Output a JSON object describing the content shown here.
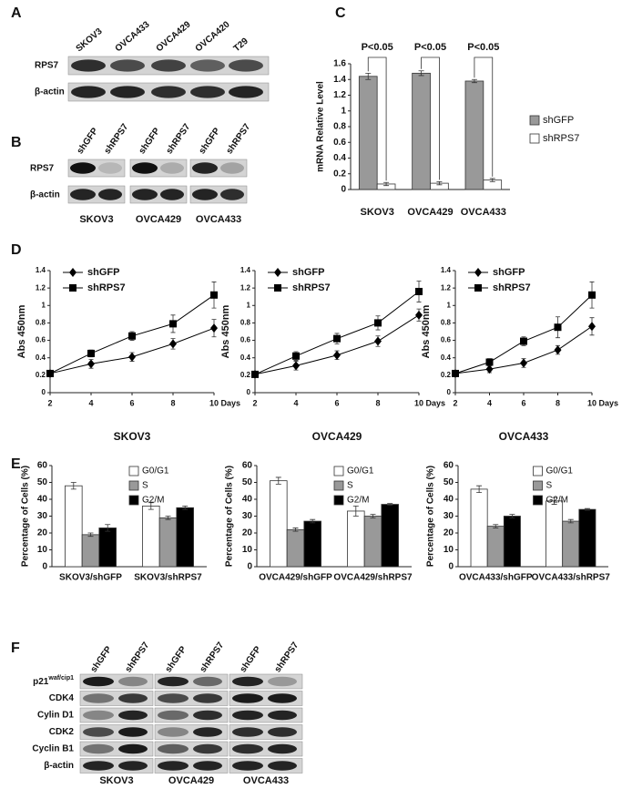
{
  "panel_labels": [
    "A",
    "B",
    "C",
    "D",
    "E",
    "F"
  ],
  "blot_a": {
    "lanes": [
      "SKOV3",
      "OVCA433",
      "OVCA429",
      "OVCA420",
      "T29"
    ],
    "rows": [
      "RPS7",
      "β-actin"
    ]
  },
  "blot_b": {
    "lanes": [
      "shGFP",
      "shRPS7"
    ],
    "rows": [
      "RPS7",
      "β-actin"
    ],
    "groups": [
      "SKOV3",
      "OVCA429",
      "OVCA433"
    ]
  },
  "blot_f": {
    "lanes": [
      "shGFP",
      "shRPS7"
    ],
    "rows": [
      {
        "main": "p21",
        "sup": "waf/cip1"
      },
      "CDK4",
      "Cylin D1",
      "CDK2",
      "Cyclin B1",
      "β-actin"
    ],
    "groups": [
      "SKOV3",
      "OVCA429",
      "OVCA433"
    ]
  },
  "chart_data": [
    {
      "type": "bar",
      "ylabel": "mRNA Relative Level",
      "categories": [
        "SKOV3",
        "OVCA429",
        "OVCA433"
      ],
      "series": [
        {
          "name": "shGFP",
          "color": "#999999",
          "values": [
            1.44,
            1.48,
            1.38
          ],
          "errors": [
            0.04,
            0.03,
            0.02
          ]
        },
        {
          "name": "shRPS7",
          "color": "#ffffff",
          "values": [
            0.07,
            0.08,
            0.12
          ],
          "errors": [
            0.02,
            0.02,
            0.02
          ]
        }
      ],
      "ylim": [
        0,
        1.6
      ],
      "yticks": [
        0,
        0.2,
        0.4,
        0.6,
        0.8,
        1,
        1.2,
        1.4,
        1.6
      ],
      "annotations": [
        "P<0.05",
        "P<0.05",
        "P<0.05"
      ],
      "legend": "right"
    },
    {
      "type": "line",
      "ylabel": "Abs 450nm",
      "xlabel": "SKOV3",
      "x": [
        2,
        4,
        6,
        8,
        10
      ],
      "xlim": [
        2,
        10
      ],
      "xticks": [
        2,
        4,
        6,
        8,
        {
          "value": 10,
          "label": "10 Days"
        }
      ],
      "ylim": [
        0,
        1.4
      ],
      "yticks": [
        0,
        0.2,
        0.4,
        0.6,
        0.8,
        1,
        1.2,
        1.4
      ],
      "series": [
        {
          "name": "shGFP",
          "color": "#000000",
          "marker": "diamond",
          "values": [
            0.22,
            0.33,
            0.41,
            0.56,
            0.74
          ],
          "errors": [
            0.03,
            0.05,
            0.05,
            0.06,
            0.1
          ]
        },
        {
          "name": "shRPS7",
          "color": "#000000",
          "marker": "square",
          "values": [
            0.22,
            0.45,
            0.65,
            0.79,
            1.12
          ],
          "errors": [
            0.03,
            0.04,
            0.05,
            0.1,
            0.15
          ]
        }
      ],
      "legend": "upper left"
    },
    {
      "type": "line",
      "ylabel": "Abs 450nm",
      "xlabel": "OVCA429",
      "x": [
        2,
        4,
        6,
        8,
        10
      ],
      "xlim": [
        2,
        10
      ],
      "xticks": [
        2,
        4,
        6,
        8,
        {
          "value": 10,
          "label": "10 Days"
        }
      ],
      "ylim": [
        0,
        1.4
      ],
      "yticks": [
        0,
        0.2,
        0.4,
        0.6,
        0.8,
        1,
        1.2,
        1.4
      ],
      "series": [
        {
          "name": "shGFP",
          "color": "#000000",
          "marker": "diamond",
          "values": [
            0.21,
            0.31,
            0.43,
            0.59,
            0.89
          ],
          "errors": [
            0.03,
            0.05,
            0.05,
            0.06,
            0.07
          ]
        },
        {
          "name": "shRPS7",
          "color": "#000000",
          "marker": "square",
          "values": [
            0.21,
            0.42,
            0.62,
            0.8,
            1.16
          ],
          "errors": [
            0.03,
            0.05,
            0.06,
            0.08,
            0.12
          ]
        }
      ],
      "legend": "upper left"
    },
    {
      "type": "line",
      "ylabel": "Abs 450nm",
      "xlabel": "OVCA433",
      "x": [
        2,
        4,
        6,
        8,
        10
      ],
      "xlim": [
        2,
        10
      ],
      "xticks": [
        2,
        4,
        6,
        8,
        {
          "value": 10,
          "label": "10 Days"
        }
      ],
      "ylim": [
        0,
        1.4
      ],
      "yticks": [
        0,
        0.2,
        0.4,
        0.6,
        0.8,
        1,
        1.2,
        1.4
      ],
      "series": [
        {
          "name": "shGFP",
          "color": "#000000",
          "marker": "diamond",
          "values": [
            0.22,
            0.27,
            0.34,
            0.49,
            0.76
          ],
          "errors": [
            0.03,
            0.04,
            0.05,
            0.05,
            0.1
          ]
        },
        {
          "name": "shRPS7",
          "color": "#000000",
          "marker": "square",
          "values": [
            0.22,
            0.35,
            0.59,
            0.75,
            1.12
          ],
          "errors": [
            0.03,
            0.04,
            0.05,
            0.12,
            0.15
          ]
        }
      ],
      "legend": "upper left"
    },
    {
      "type": "bar",
      "ylabel": "Percentage of Cells (%)",
      "categories": [
        "SKOV3/shGFP",
        "SKOV3/shRPS7"
      ],
      "series": [
        {
          "name": "G0/G1",
          "color": "#ffffff",
          "values": [
            48,
            36
          ],
          "errors": [
            2,
            2
          ]
        },
        {
          "name": "S",
          "color": "#999999",
          "values": [
            19,
            29
          ],
          "errors": [
            1,
            1
          ]
        },
        {
          "name": "G2/M",
          "color": "#000000",
          "values": [
            23,
            35
          ],
          "errors": [
            2,
            1
          ]
        }
      ],
      "ylim": [
        0,
        60
      ],
      "yticks": [
        0,
        10,
        20,
        30,
        40,
        50,
        60
      ],
      "legend": "upper right"
    },
    {
      "type": "bar",
      "ylabel": "Percentage of Cells (%)",
      "categories": [
        "OVCA429/shGFP",
        "OVCA429/shRPS7"
      ],
      "series": [
        {
          "name": "G0/G1",
          "color": "#ffffff",
          "values": [
            51,
            33
          ],
          "errors": [
            2,
            3
          ]
        },
        {
          "name": "S",
          "color": "#999999",
          "values": [
            22,
            30
          ],
          "errors": [
            1,
            1
          ]
        },
        {
          "name": "G2/M",
          "color": "#000000",
          "values": [
            27,
            37
          ],
          "errors": [
            1,
            0.5
          ]
        }
      ],
      "ylim": [
        0,
        60
      ],
      "yticks": [
        0,
        10,
        20,
        30,
        40,
        50,
        60
      ],
      "legend": "upper right"
    },
    {
      "type": "bar",
      "ylabel": "Percentage of Cells (%)",
      "categories": [
        "OVCA433/shGFP",
        "OVCA433/shRPS7"
      ],
      "series": [
        {
          "name": "G0/G1",
          "color": "#ffffff",
          "values": [
            46,
            39
          ],
          "errors": [
            2,
            2
          ]
        },
        {
          "name": "S",
          "color": "#999999",
          "values": [
            24,
            27
          ],
          "errors": [
            1,
            1
          ]
        },
        {
          "name": "G2/M",
          "color": "#000000",
          "values": [
            30,
            34
          ],
          "errors": [
            1,
            0.5
          ]
        }
      ],
      "ylim": [
        0,
        60
      ],
      "yticks": [
        0,
        10,
        20,
        30,
        40,
        50,
        60
      ],
      "legend": "upper right"
    }
  ]
}
